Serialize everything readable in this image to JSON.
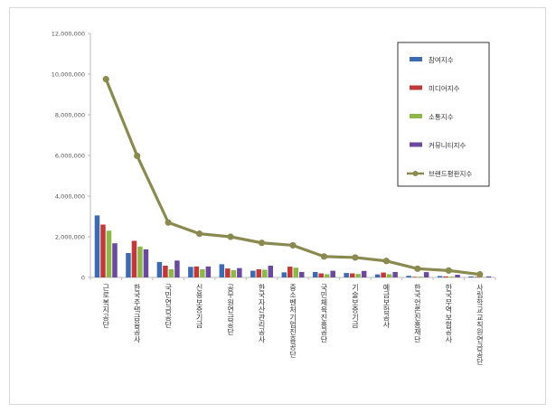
{
  "chart_data": {
    "type": "bar",
    "categories": [
      "근로복지공단",
      "한국주택금융공사",
      "국민연금공단",
      "신용보증기금",
      "공무원연금공단",
      "한국자산관리공사",
      "중소벤처기업진흥공단",
      "국민체육진흥공단",
      "기술보증기금",
      "예금보험공사",
      "한국언론진흥재단",
      "한국무역보험공사",
      "사립학교교직원연금공단"
    ],
    "series": [
      {
        "name": "참여지수",
        "type": "bar",
        "color": "#3e6bb0",
        "values": [
          3050000,
          1200000,
          760000,
          520000,
          650000,
          330000,
          250000,
          270000,
          220000,
          150000,
          80000,
          70000,
          50000
        ]
      },
      {
        "name": "미디어지수",
        "type": "bar",
        "color": "#c03a3a",
        "values": [
          2600000,
          1800000,
          580000,
          540000,
          440000,
          400000,
          530000,
          200000,
          200000,
          240000,
          30000,
          50000,
          30000
        ]
      },
      {
        "name": "소통지수",
        "type": "bar",
        "color": "#8db849",
        "values": [
          2300000,
          1520000,
          400000,
          400000,
          360000,
          380000,
          480000,
          160000,
          170000,
          160000,
          40000,
          40000,
          20000
        ]
      },
      {
        "name": "커뮤니티지수",
        "type": "bar",
        "color": "#6b4a9e",
        "values": [
          1680000,
          1380000,
          830000,
          540000,
          460000,
          580000,
          270000,
          330000,
          320000,
          270000,
          260000,
          130000,
          50000
        ]
      },
      {
        "name": "브랜드평판지수",
        "type": "line",
        "color": "#8a8a50",
        "values": [
          9750000,
          5980000,
          2700000,
          2150000,
          2000000,
          1700000,
          1580000,
          1030000,
          980000,
          810000,
          430000,
          340000,
          150000
        ]
      }
    ],
    "yticks": [
      "0",
      "2,000,000",
      "4,000,000",
      "6,000,000",
      "8,000,000",
      "10,000,000",
      "12,000,000"
    ],
    "ylim": [
      0,
      12000000
    ],
    "legend_position": "top-right",
    "grid": false
  }
}
